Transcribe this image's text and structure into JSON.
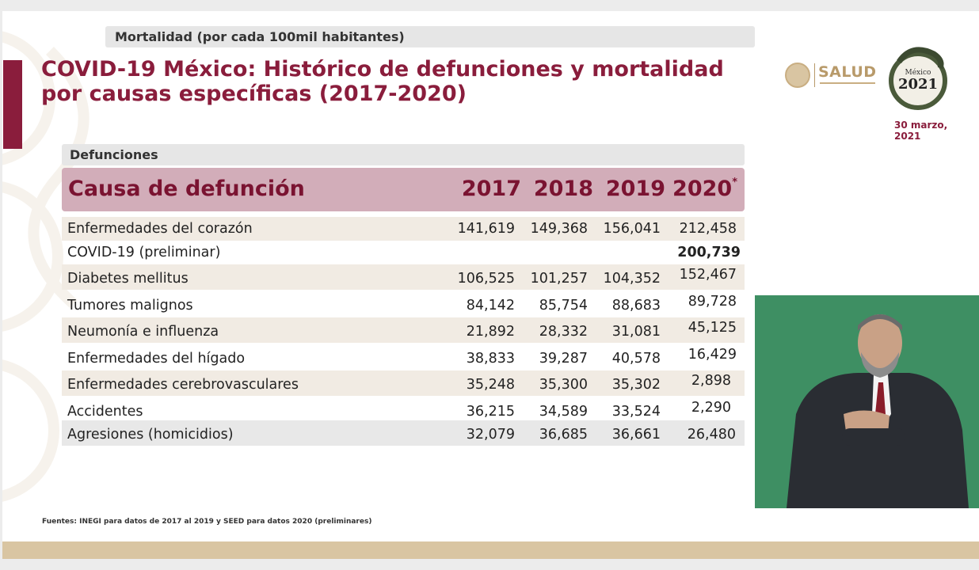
{
  "slide": {
    "top_band": "Mortalidad (por cada 100mil habitantes)",
    "title": "COVID-19 México: Histórico de defunciones y mortalidad por causas específicas (2017-2020)",
    "logo_salud": "SALUD",
    "logo_year": "2021",
    "logo_year_caption": "México",
    "date_line1": "30 marzo,",
    "date_line2": "2021",
    "section_label": "Defunciones",
    "footer": "Fuentes: INEGI para datos de 2017 al 2019 y SEED para datos 2020 (preliminares)"
  },
  "table": {
    "header": {
      "cause": "Causa de defunción",
      "years": [
        "2017",
        "2018",
        "2019",
        "2020"
      ],
      "asterisk": "*"
    },
    "rows": [
      {
        "cause": "Enfermedades del corazón",
        "values": [
          "141,619",
          "149,368",
          "156,041",
          "212,458"
        ]
      },
      {
        "cause": "COVID-19 (preliminar)",
        "values": [
          "",
          "",
          "",
          "200,739"
        ]
      },
      {
        "cause": "Diabetes mellitus",
        "values": [
          "106,525",
          "101,257",
          "104,352",
          "152,467"
        ]
      },
      {
        "cause": "Tumores malignos",
        "values": [
          "84,142",
          "85,754",
          "88,683",
          "89,728"
        ]
      },
      {
        "cause": "Neumonía e influenza",
        "values": [
          "21,892",
          "28,332",
          "31,081",
          "45,125"
        ]
      },
      {
        "cause": "Enfermedades del hígado",
        "values": [
          "38,833",
          "39,287",
          "40,578",
          "16,429"
        ]
      },
      {
        "cause": "Enfermedades cerebrovasculares",
        "values": [
          "35,248",
          "35,300",
          "35,302",
          "2,898"
        ]
      },
      {
        "cause": "Accidentes",
        "values": [
          "36,215",
          "34,589",
          "33,524",
          "2,290"
        ]
      },
      {
        "cause": "Agresiones (homicidios)",
        "values": [
          "32,079",
          "36,685",
          "36,661",
          "26,480"
        ]
      }
    ]
  },
  "colors": {
    "brand": "#8a1d3c",
    "header_band": "#d2adb9",
    "row_alt": "#f1ebe3",
    "gold": "#d9c5a2",
    "video_bg": "#3e8f63"
  },
  "icons": {
    "salud_seal": "eagle-seal-icon",
    "logo_2021": "mexico-2021-logo-icon",
    "watermark": "decorative-pattern-icon"
  }
}
